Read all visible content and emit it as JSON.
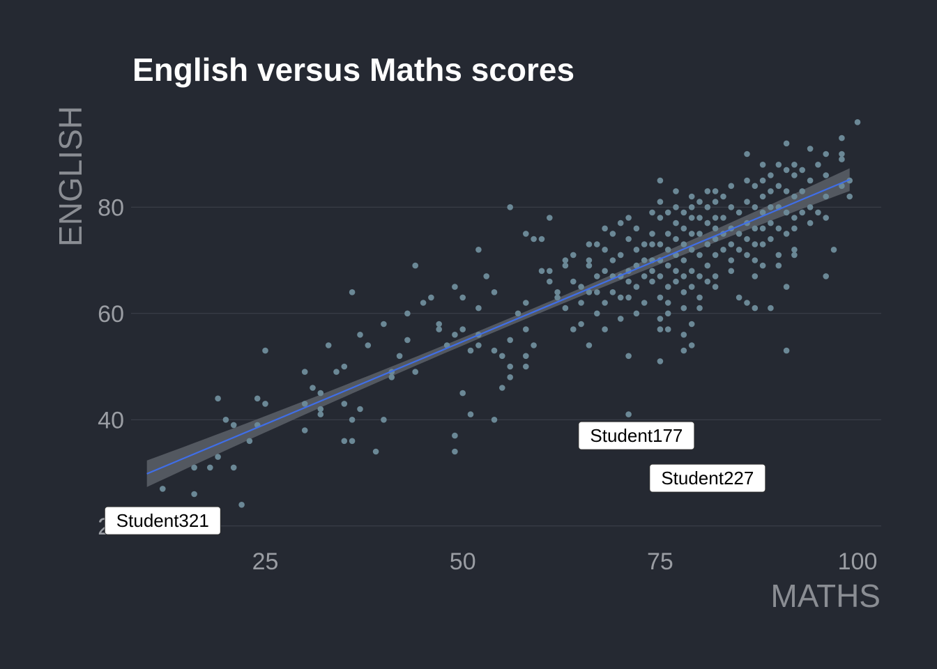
{
  "chart_data": {
    "type": "scatter",
    "title": "English versus Maths scores",
    "xlabel": "MATHS",
    "ylabel": "ENGLISH",
    "xlim": [
      8,
      103
    ],
    "ylim": [
      18,
      98
    ],
    "xticks": [
      25,
      50,
      75,
      100
    ],
    "yticks": [
      20,
      40,
      60,
      80
    ],
    "grid": "horizontal major",
    "colors": {
      "background": "#252932",
      "grid": "#3e434c",
      "points": "#6b8896",
      "fit_line": "#3f6ee8",
      "confidence_band": "#5c6068",
      "title": "#ffffff",
      "axis_text": "#9a9da3"
    },
    "fit": {
      "method": "linear",
      "x_range": [
        10,
        99
      ],
      "intercept": 23.6,
      "slope": 0.622,
      "se_edge": 2.5,
      "se_center": 0.7,
      "x_center": 57
    },
    "points": [
      [
        12,
        27
      ],
      [
        16,
        26
      ],
      [
        16,
        31
      ],
      [
        18,
        31
      ],
      [
        19,
        33
      ],
      [
        19,
        44
      ],
      [
        20,
        40
      ],
      [
        21,
        39
      ],
      [
        21,
        31
      ],
      [
        22,
        24
      ],
      [
        23,
        36
      ],
      [
        24,
        39
      ],
      [
        24,
        44
      ],
      [
        25,
        43
      ],
      [
        25,
        53
      ],
      [
        30,
        49
      ],
      [
        30,
        43
      ],
      [
        30,
        38
      ],
      [
        31,
        46
      ],
      [
        32,
        45
      ],
      [
        32,
        42
      ],
      [
        32,
        41
      ],
      [
        33,
        54
      ],
      [
        34,
        49
      ],
      [
        35,
        50
      ],
      [
        35,
        43
      ],
      [
        35,
        36
      ],
      [
        36,
        40
      ],
      [
        36,
        36
      ],
      [
        36,
        64
      ],
      [
        37,
        56
      ],
      [
        37,
        42
      ],
      [
        38,
        54
      ],
      [
        39,
        34
      ],
      [
        40,
        58
      ],
      [
        40,
        40
      ],
      [
        41,
        49
      ],
      [
        41,
        48
      ],
      [
        42,
        52
      ],
      [
        43,
        60
      ],
      [
        43,
        55
      ],
      [
        44,
        69
      ],
      [
        44,
        49
      ],
      [
        45,
        62
      ],
      [
        46,
        63
      ],
      [
        47,
        58
      ],
      [
        47,
        57
      ],
      [
        48,
        54
      ],
      [
        49,
        65
      ],
      [
        49,
        56
      ],
      [
        49,
        37
      ],
      [
        49,
        34
      ],
      [
        50,
        57
      ],
      [
        50,
        63
      ],
      [
        50,
        45
      ],
      [
        51,
        53
      ],
      [
        51,
        41
      ],
      [
        52,
        72
      ],
      [
        52,
        61
      ],
      [
        52,
        56
      ],
      [
        52,
        54
      ],
      [
        53,
        67
      ],
      [
        54,
        64
      ],
      [
        54,
        53
      ],
      [
        54,
        40
      ],
      [
        55,
        52
      ],
      [
        55,
        46
      ],
      [
        56,
        80
      ],
      [
        56,
        55
      ],
      [
        56,
        50
      ],
      [
        56,
        48
      ],
      [
        57,
        60
      ],
      [
        58,
        75
      ],
      [
        58,
        62
      ],
      [
        58,
        57
      ],
      [
        58,
        52
      ],
      [
        58,
        50
      ],
      [
        59,
        74
      ],
      [
        59,
        54
      ],
      [
        60,
        74
      ],
      [
        60,
        68
      ],
      [
        61,
        68
      ],
      [
        61,
        66
      ],
      [
        61,
        78
      ],
      [
        62,
        63
      ],
      [
        62,
        64
      ],
      [
        63,
        70
      ],
      [
        63,
        69
      ],
      [
        63,
        61
      ],
      [
        64,
        71
      ],
      [
        64,
        66
      ],
      [
        64,
        57
      ],
      [
        65,
        65
      ],
      [
        65,
        62
      ],
      [
        65,
        58
      ],
      [
        66,
        73
      ],
      [
        66,
        70
      ],
      [
        66,
        69
      ],
      [
        66,
        64
      ],
      [
        66,
        54
      ],
      [
        67,
        73
      ],
      [
        67,
        67
      ],
      [
        67,
        60
      ],
      [
        67,
        64
      ],
      [
        68,
        76
      ],
      [
        68,
        72
      ],
      [
        68,
        68
      ],
      [
        68,
        62
      ],
      [
        68,
        57
      ],
      [
        69,
        75
      ],
      [
        69,
        70
      ],
      [
        69,
        67
      ],
      [
        69,
        64
      ],
      [
        70,
        77
      ],
      [
        70,
        71
      ],
      [
        70,
        67
      ],
      [
        70,
        63
      ],
      [
        70,
        59
      ],
      [
        71,
        78
      ],
      [
        71,
        74
      ],
      [
        71,
        68
      ],
      [
        71,
        66
      ],
      [
        71,
        63
      ],
      [
        71,
        52
      ],
      [
        71,
        41
      ],
      [
        72,
        76
      ],
      [
        72,
        72
      ],
      [
        72,
        69
      ],
      [
        72,
        65
      ],
      [
        72,
        60
      ],
      [
        73,
        73
      ],
      [
        73,
        70
      ],
      [
        73,
        67
      ],
      [
        73,
        62
      ],
      [
        74,
        79
      ],
      [
        74,
        75
      ],
      [
        74,
        73
      ],
      [
        74,
        70
      ],
      [
        74,
        68
      ],
      [
        74,
        66
      ],
      [
        75,
        85
      ],
      [
        75,
        81
      ],
      [
        75,
        78
      ],
      [
        75,
        73
      ],
      [
        75,
        70
      ],
      [
        75,
        67
      ],
      [
        75,
        63
      ],
      [
        75,
        59
      ],
      [
        75,
        57
      ],
      [
        75,
        51
      ],
      [
        76,
        79
      ],
      [
        76,
        75
      ],
      [
        76,
        72
      ],
      [
        76,
        69
      ],
      [
        76,
        65
      ],
      [
        76,
        62
      ],
      [
        76,
        60
      ],
      [
        76,
        57
      ],
      [
        77,
        83
      ],
      [
        77,
        80
      ],
      [
        77,
        77
      ],
      [
        77,
        74
      ],
      [
        77,
        71
      ],
      [
        77,
        68
      ],
      [
        77,
        66
      ],
      [
        78,
        79
      ],
      [
        78,
        76
      ],
      [
        78,
        73
      ],
      [
        78,
        70
      ],
      [
        78,
        67
      ],
      [
        78,
        64
      ],
      [
        78,
        61
      ],
      [
        78,
        56
      ],
      [
        78,
        53
      ],
      [
        78,
        27
      ],
      [
        79,
        82
      ],
      [
        79,
        80
      ],
      [
        79,
        78
      ],
      [
        79,
        75
      ],
      [
        79,
        72
      ],
      [
        79,
        68
      ],
      [
        79,
        65
      ],
      [
        79,
        58
      ],
      [
        79,
        54
      ],
      [
        80,
        81
      ],
      [
        80,
        78
      ],
      [
        80,
        75
      ],
      [
        80,
        71
      ],
      [
        80,
        67
      ],
      [
        80,
        63
      ],
      [
        80,
        61
      ],
      [
        81,
        83
      ],
      [
        81,
        80
      ],
      [
        81,
        77
      ],
      [
        81,
        73
      ],
      [
        81,
        69
      ],
      [
        81,
        66
      ],
      [
        82,
        83
      ],
      [
        82,
        81
      ],
      [
        82,
        78
      ],
      [
        82,
        76
      ],
      [
        82,
        74
      ],
      [
        82,
        71
      ],
      [
        82,
        67
      ],
      [
        82,
        65
      ],
      [
        83,
        82
      ],
      [
        83,
        78
      ],
      [
        83,
        75
      ],
      [
        83,
        72
      ],
      [
        84,
        84
      ],
      [
        84,
        80
      ],
      [
        84,
        76
      ],
      [
        84,
        73
      ],
      [
        84,
        70
      ],
      [
        84,
        68
      ],
      [
        85,
        79
      ],
      [
        85,
        75
      ],
      [
        85,
        72
      ],
      [
        85,
        63
      ],
      [
        86,
        90
      ],
      [
        86,
        85
      ],
      [
        86,
        81
      ],
      [
        86,
        77
      ],
      [
        86,
        74
      ],
      [
        86,
        71
      ],
      [
        86,
        62
      ],
      [
        87,
        84
      ],
      [
        87,
        80
      ],
      [
        87,
        76
      ],
      [
        87,
        73
      ],
      [
        87,
        70
      ],
      [
        87,
        67
      ],
      [
        87,
        61
      ],
      [
        88,
        88
      ],
      [
        88,
        85
      ],
      [
        88,
        82
      ],
      [
        88,
        79
      ],
      [
        88,
        76
      ],
      [
        88,
        73
      ],
      [
        88,
        69
      ],
      [
        89,
        86
      ],
      [
        89,
        83
      ],
      [
        89,
        80
      ],
      [
        89,
        77
      ],
      [
        89,
        74
      ],
      [
        89,
        61
      ],
      [
        90,
        88
      ],
      [
        90,
        84
      ],
      [
        90,
        80
      ],
      [
        90,
        76
      ],
      [
        90,
        71
      ],
      [
        90,
        69
      ],
      [
        91,
        92
      ],
      [
        91,
        87
      ],
      [
        91,
        83
      ],
      [
        91,
        79
      ],
      [
        91,
        75
      ],
      [
        91,
        65
      ],
      [
        91,
        53
      ],
      [
        92,
        88
      ],
      [
        92,
        86
      ],
      [
        92,
        82
      ],
      [
        92,
        78
      ],
      [
        92,
        76
      ],
      [
        92,
        72
      ],
      [
        92,
        71
      ],
      [
        93,
        87
      ],
      [
        93,
        83
      ],
      [
        93,
        79
      ],
      [
        94,
        91
      ],
      [
        94,
        85
      ],
      [
        94,
        80
      ],
      [
        94,
        77
      ],
      [
        95,
        88
      ],
      [
        95,
        79
      ],
      [
        96,
        90
      ],
      [
        96,
        86
      ],
      [
        96,
        82
      ],
      [
        96,
        78
      ],
      [
        96,
        67
      ],
      [
        97,
        72
      ],
      [
        98,
        93
      ],
      [
        98,
        90
      ],
      [
        98,
        89
      ],
      [
        98,
        84
      ],
      [
        99,
        85
      ],
      [
        99,
        82
      ],
      [
        100,
        96
      ]
    ],
    "annotations": [
      {
        "label": "Student321",
        "x": 12,
        "y": 21
      },
      {
        "label": "Student177",
        "x": 72,
        "y": 37
      },
      {
        "label": "Student227",
        "x": 81,
        "y": 29
      }
    ]
  }
}
